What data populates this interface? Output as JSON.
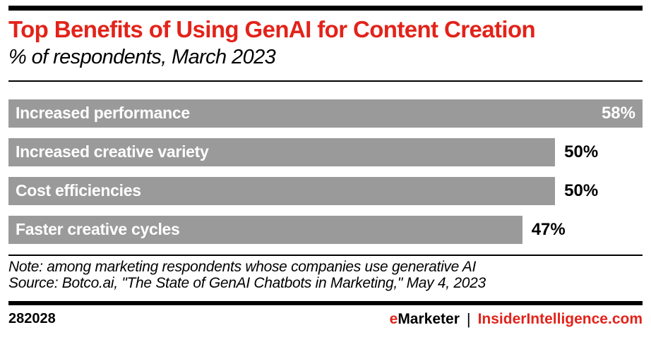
{
  "header": {
    "title": "Top Benefits of Using GenAI for Content Creation",
    "subtitle": "% of respondents, March 2023"
  },
  "chart_data": {
    "type": "bar",
    "orientation": "horizontal",
    "title": "Top Benefits of Using GenAI for Content Creation",
    "subtitle": "% of respondents, March 2023",
    "unit": "% of respondents",
    "categories": [
      "Increased performance",
      "Increased creative variety",
      "Cost efficiencies",
      "Faster creative cycles"
    ],
    "values": [
      58,
      50,
      50,
      47
    ],
    "value_labels": [
      "58%",
      "50%",
      "50%",
      "47%"
    ],
    "value_label_inside": [
      true,
      false,
      false,
      false
    ],
    "xlim": [
      0,
      58
    ],
    "bar_color": "#9a9a9a",
    "grid": false,
    "legend": false
  },
  "footnotes": {
    "note": "Note: among marketing respondents whose companies use generative AI",
    "source": "Source: Botco.ai, \"The State of GenAI Chatbots in Marketing,\" May 4, 2023"
  },
  "footer": {
    "chart_id": "282028",
    "brand_first_letter": "e",
    "brand_rest": "Marketer",
    "divider": "|",
    "site": "InsiderIntelligence.com"
  },
  "colors": {
    "accent_red": "#e2231a",
    "bar_gray": "#9a9a9a",
    "text_black": "#000000",
    "bar_label_white": "#ffffff"
  }
}
